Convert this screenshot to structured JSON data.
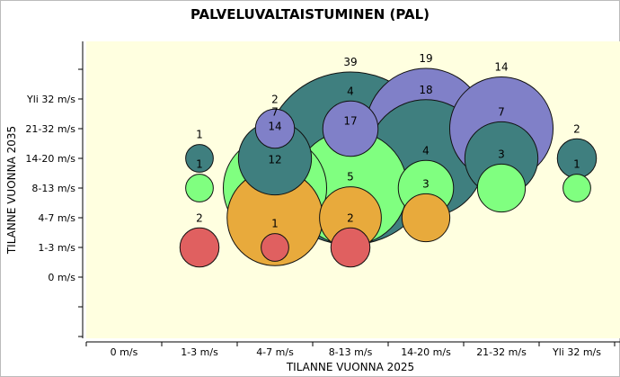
{
  "chart_data": {
    "type": "bubble",
    "title": "PALVELUVALTAISTUMINEN (PAL)",
    "xlabel": "TILANNE VUONNA 2025",
    "ylabel": "TILANNE VUONNA 2035",
    "x_categories": [
      "0 m/s",
      "1-3 m/s",
      "4-7 m/s",
      "8-13 m/s",
      "14-20 m/s",
      "21-32 m/s",
      "Yli 32 m/s"
    ],
    "y_categories": [
      "0 m/s",
      "1-3 m/s",
      "4-7 m/s",
      "8-13 m/s",
      "14-20 m/s",
      "21-32 m/s",
      "Yli 32 m/s"
    ],
    "size_range": [
      1,
      39
    ],
    "plot_background": "#ffffe0",
    "grid": false,
    "legend": "none",
    "colors": {
      "1-3 m/s": "#e06060",
      "4-7 m/s": "#e8aa3c",
      "8-13 m/s": "#80ff80",
      "14-20 m/s": "#3f7f7f",
      "21-32 m/s": "#8080c8"
    },
    "points": [
      {
        "x": "1-3 m/s",
        "y": "14-20 m/s",
        "value": 1
      },
      {
        "x": "1-3 m/s",
        "y": "8-13 m/s",
        "value": 1
      },
      {
        "x": "1-3 m/s",
        "y": "1-3 m/s",
        "value": 2
      },
      {
        "x": "4-7 m/s",
        "y": "21-32 m/s",
        "value": 2
      },
      {
        "x": "4-7 m/s",
        "y": "14-20 m/s",
        "value": 7
      },
      {
        "x": "4-7 m/s",
        "y": "8-13 m/s",
        "value": 14
      },
      {
        "x": "4-7 m/s",
        "y": "4-7 m/s",
        "value": 12
      },
      {
        "x": "4-7 m/s",
        "y": "1-3 m/s",
        "value": 1
      },
      {
        "x": "8-13 m/s",
        "y": "14-20 m/s",
        "value": 39
      },
      {
        "x": "8-13 m/s",
        "y": "21-32 m/s",
        "value": 4
      },
      {
        "x": "8-13 m/s",
        "y": "8-13 m/s",
        "value": 17
      },
      {
        "x": "8-13 m/s",
        "y": "4-7 m/s",
        "value": 5
      },
      {
        "x": "8-13 m/s",
        "y": "1-3 m/s",
        "value": 2
      },
      {
        "x": "14-20 m/s",
        "y": "21-32 m/s",
        "value": 19
      },
      {
        "x": "14-20 m/s",
        "y": "14-20 m/s",
        "value": 18
      },
      {
        "x": "14-20 m/s",
        "y": "8-13 m/s",
        "value": 4
      },
      {
        "x": "14-20 m/s",
        "y": "4-7 m/s",
        "value": 3
      },
      {
        "x": "21-32 m/s",
        "y": "21-32 m/s",
        "value": 14
      },
      {
        "x": "21-32 m/s",
        "y": "14-20 m/s",
        "value": 7
      },
      {
        "x": "21-32 m/s",
        "y": "8-13 m/s",
        "value": 3
      },
      {
        "x": "Yli 32 m/s",
        "y": "14-20 m/s",
        "value": 2
      },
      {
        "x": "Yli 32 m/s",
        "y": "8-13 m/s",
        "value": 1
      }
    ]
  }
}
